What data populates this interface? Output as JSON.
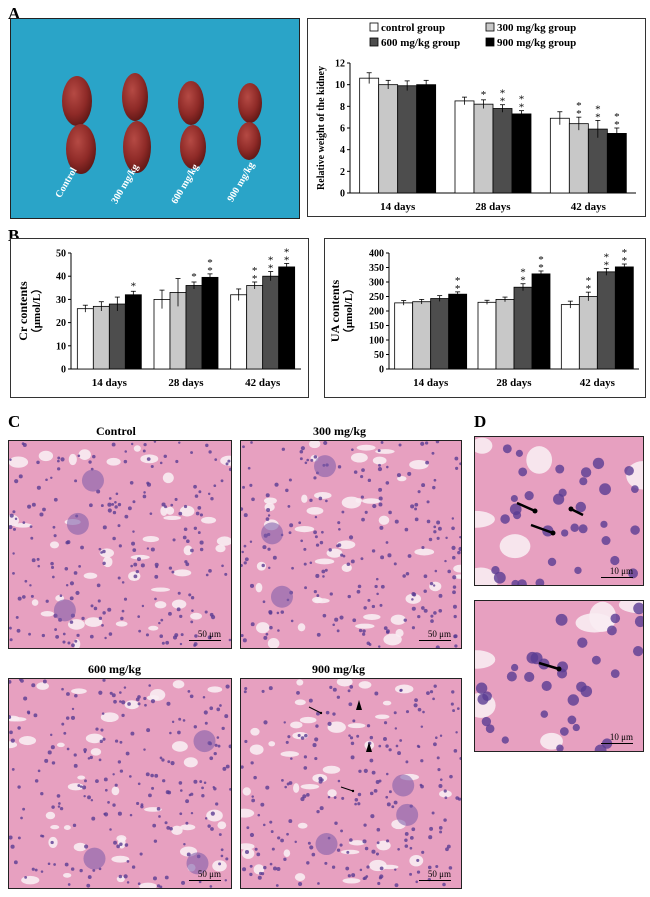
{
  "panel_letters": {
    "a": "A",
    "b": "B",
    "c": "C",
    "d": "D"
  },
  "kidney_labels": [
    "Control",
    "300 mg/kg",
    "600 mg/kg",
    "900 mg/kg"
  ],
  "histology": {
    "titles": [
      "Control",
      "300 mg/kg",
      "600 mg/kg",
      "900 mg/kg"
    ],
    "scale_bar": "50 μm",
    "detail_scale_bar": "10 μm"
  },
  "colors": {
    "photo_background": "#2aa4c8",
    "kidney": "#8e2a27",
    "tissue_pink": "#e7a0c0",
    "nuclei": "#5a3c92",
    "control_bar": "#ffffff",
    "g300_bar": "#c8c8c8",
    "g600_bar": "#4d4d4d",
    "g900_bar": "#000000"
  },
  "chart_data": [
    {
      "id": "kidney_weight",
      "type": "bar",
      "ylabel": "Relative weight of the kidney",
      "ylim": [
        0,
        12
      ],
      "yticks": [
        0,
        2,
        4,
        6,
        8,
        10,
        12
      ],
      "categories": [
        "14 days",
        "28 days",
        "42 days"
      ],
      "legend_position": "top",
      "series": [
        {
          "name": "control group",
          "values": [
            10.6,
            8.5,
            6.9
          ],
          "errors": [
            0.5,
            0.35,
            0.6
          ],
          "marks": [
            "",
            "",
            ""
          ]
        },
        {
          "name": "300 mg/kg group",
          "values": [
            10.0,
            8.2,
            6.4
          ],
          "errors": [
            0.4,
            0.4,
            0.6
          ],
          "marks": [
            "",
            "*",
            "**"
          ]
        },
        {
          "name": "600 mg/kg group",
          "values": [
            9.9,
            7.8,
            5.9
          ],
          "errors": [
            0.45,
            0.35,
            0.8
          ],
          "marks": [
            "",
            "**",
            "**"
          ]
        },
        {
          "name": "900 mg/kg group",
          "values": [
            10.0,
            7.3,
            5.5
          ],
          "errors": [
            0.4,
            0.3,
            0.5
          ],
          "marks": [
            "",
            "**",
            "**"
          ]
        }
      ]
    },
    {
      "id": "cr_contents",
      "type": "bar",
      "ylabel": "Cr contents",
      "yunit": "（μmol/L）",
      "ylim": [
        0,
        50
      ],
      "yticks": [
        0,
        10,
        20,
        30,
        40,
        50
      ],
      "categories": [
        "14 days",
        "28 days",
        "42 days"
      ],
      "series": [
        {
          "name": "control group",
          "values": [
            26,
            30,
            32
          ],
          "errors": [
            1.5,
            4,
            2.5
          ],
          "marks": [
            "",
            "",
            ""
          ]
        },
        {
          "name": "300 mg/kg group",
          "values": [
            27,
            33,
            36
          ],
          "errors": [
            2,
            6,
            1.5
          ],
          "marks": [
            "",
            "",
            "**"
          ]
        },
        {
          "name": "600 mg/kg group",
          "values": [
            28,
            36,
            40
          ],
          "errors": [
            3,
            1.5,
            2
          ],
          "marks": [
            "",
            "*",
            "**"
          ]
        },
        {
          "name": "900 mg/kg group",
          "values": [
            32,
            39.5,
            44
          ],
          "errors": [
            1.5,
            1.5,
            1.5
          ],
          "marks": [
            "*",
            "**",
            "**"
          ]
        }
      ]
    },
    {
      "id": "ua_contents",
      "type": "bar",
      "ylabel": "UA contents",
      "yunit": "（μmol/L）",
      "ylim": [
        0,
        400
      ],
      "yticks": [
        0,
        50,
        100,
        150,
        200,
        250,
        300,
        350,
        400
      ],
      "categories": [
        "14 days",
        "28 days",
        "42 days"
      ],
      "series": [
        {
          "name": "control group",
          "values": [
            228,
            230,
            222
          ],
          "errors": [
            8,
            7,
            12
          ],
          "marks": [
            "",
            "",
            ""
          ]
        },
        {
          "name": "300 mg/kg group",
          "values": [
            232,
            240,
            250
          ],
          "errors": [
            8,
            8,
            15
          ],
          "marks": [
            "",
            "",
            "**"
          ]
        },
        {
          "name": "600 mg/kg group",
          "values": [
            243,
            282,
            335
          ],
          "errors": [
            10,
            12,
            12
          ],
          "marks": [
            "",
            "**",
            "**"
          ]
        },
        {
          "name": "900 mg/kg group",
          "values": [
            258,
            328,
            352
          ],
          "errors": [
            8,
            10,
            10
          ],
          "marks": [
            "**",
            "**",
            "**"
          ]
        }
      ]
    }
  ]
}
